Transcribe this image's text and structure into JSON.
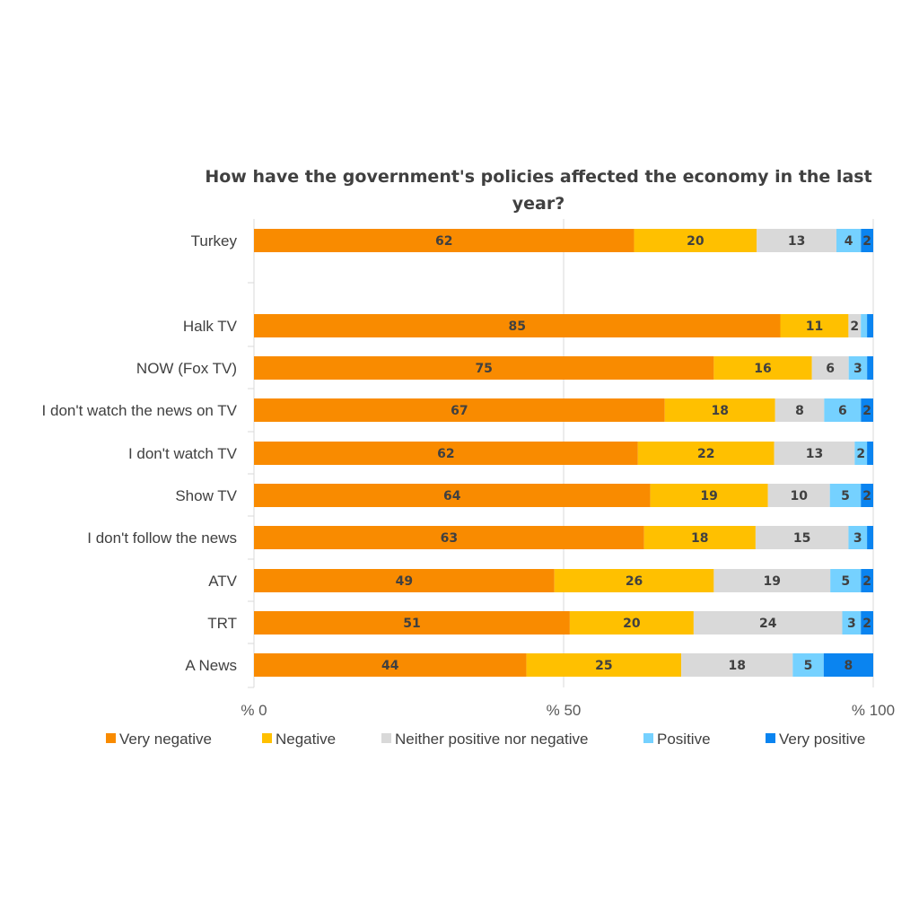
{
  "chart_data": {
    "type": "bar",
    "orientation": "horizontal",
    "stacked": true,
    "title": "How have the government's policies affected the economy in the last year?",
    "title_lines": [
      "How have the government's policies affected the economy in the last",
      "year?"
    ],
    "categories": [
      "Turkey",
      "Halk TV",
      "NOW (Fox TV)",
      "I don't watch the news on TV",
      "I don't watch TV",
      "Show TV",
      "I don't follow the news",
      "ATV",
      "TRT",
      "A News"
    ],
    "series": [
      {
        "name": "Very negative",
        "color": "#F98B00",
        "values": [
          62,
          85,
          75,
          67,
          62,
          64,
          63,
          49,
          51,
          44
        ]
      },
      {
        "name": "Negative",
        "color": "#FFC000",
        "values": [
          20,
          11,
          16,
          18,
          22,
          19,
          18,
          26,
          20,
          25
        ]
      },
      {
        "name": "Neither positive nor negative",
        "color": "#D9D9D9",
        "values": [
          13,
          2,
          6,
          8,
          13,
          10,
          15,
          19,
          24,
          18
        ]
      },
      {
        "name": "Positive",
        "color": "#75D1FF",
        "values": [
          4,
          1,
          3,
          6,
          2,
          5,
          3,
          5,
          3,
          5
        ]
      },
      {
        "name": "Very positive",
        "color": "#0A84F0",
        "values": [
          2,
          1,
          1,
          2,
          1,
          2,
          1,
          2,
          2,
          8
        ]
      }
    ],
    "xlim": [
      0,
      100
    ],
    "xticks": [
      "% 0",
      "% 50",
      "% 100"
    ],
    "xtick_values": [
      0,
      50,
      100
    ],
    "grid": true,
    "legend_position": "bottom"
  }
}
